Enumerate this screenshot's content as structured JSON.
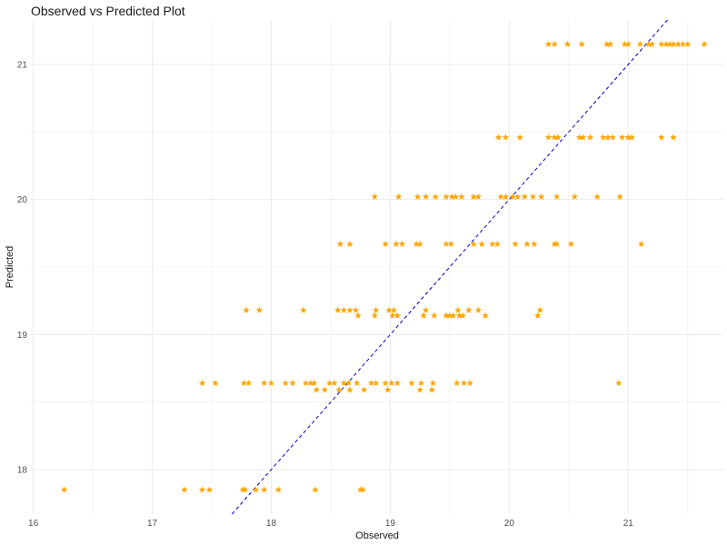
{
  "chart_data": {
    "type": "scatter",
    "title": "Observed vs Predicted Plot",
    "xlabel": "Observed",
    "ylabel": "Predicted",
    "xlim": [
      15.98,
      21.8
    ],
    "ylim": [
      17.67,
      21.33
    ],
    "x_ticks": [
      "16",
      "17",
      "18",
      "19",
      "20",
      "21"
    ],
    "y_ticks": [
      "18",
      "19",
      "20",
      "21"
    ],
    "grid": true,
    "point_color": "#FFA500",
    "point_shape": "star",
    "reference_line": {
      "type": "y=x",
      "color": "#0000CC",
      "style": "dashed"
    },
    "series": [
      {
        "points": [
          [
            16.26,
            17.85
          ],
          [
            17.27,
            17.85
          ],
          [
            17.42,
            17.85
          ],
          [
            17.48,
            17.85
          ],
          [
            17.76,
            17.85
          ],
          [
            17.78,
            17.85
          ],
          [
            17.87,
            17.85
          ],
          [
            17.94,
            17.85
          ],
          [
            18.06,
            17.85
          ],
          [
            18.37,
            17.85
          ],
          [
            18.75,
            17.85
          ],
          [
            18.77,
            17.85
          ],
          [
            17.42,
            18.64
          ],
          [
            17.53,
            18.64
          ],
          [
            17.77,
            18.64
          ],
          [
            17.81,
            18.64
          ],
          [
            17.94,
            18.64
          ],
          [
            18.0,
            18.64
          ],
          [
            18.12,
            18.64
          ],
          [
            18.18,
            18.64
          ],
          [
            18.29,
            18.64
          ],
          [
            18.33,
            18.64
          ],
          [
            18.36,
            18.64
          ],
          [
            18.49,
            18.64
          ],
          [
            18.53,
            18.64
          ],
          [
            18.61,
            18.64
          ],
          [
            18.65,
            18.64
          ],
          [
            18.72,
            18.64
          ],
          [
            18.84,
            18.64
          ],
          [
            18.88,
            18.64
          ],
          [
            18.96,
            18.64
          ],
          [
            19.01,
            18.64
          ],
          [
            19.06,
            18.64
          ],
          [
            19.18,
            18.64
          ],
          [
            19.26,
            18.64
          ],
          [
            19.36,
            18.64
          ],
          [
            19.56,
            18.64
          ],
          [
            19.62,
            18.64
          ],
          [
            19.67,
            18.64
          ],
          [
            20.92,
            18.64
          ],
          [
            18.38,
            18.59
          ],
          [
            18.45,
            18.59
          ],
          [
            18.57,
            18.59
          ],
          [
            18.66,
            18.59
          ],
          [
            18.78,
            18.59
          ],
          [
            18.98,
            18.59
          ],
          [
            19.25,
            18.59
          ],
          [
            19.35,
            18.59
          ],
          [
            17.79,
            19.18
          ],
          [
            17.9,
            19.18
          ],
          [
            18.27,
            19.18
          ],
          [
            18.56,
            19.18
          ],
          [
            18.61,
            19.18
          ],
          [
            18.66,
            19.18
          ],
          [
            18.71,
            19.18
          ],
          [
            18.88,
            19.18
          ],
          [
            18.99,
            19.18
          ],
          [
            19.03,
            19.18
          ],
          [
            19.3,
            19.18
          ],
          [
            19.57,
            19.18
          ],
          [
            19.66,
            19.18
          ],
          [
            19.74,
            19.18
          ],
          [
            20.26,
            19.18
          ],
          [
            18.73,
            19.14
          ],
          [
            18.87,
            19.14
          ],
          [
            19.02,
            19.14
          ],
          [
            19.06,
            19.14
          ],
          [
            19.28,
            19.14
          ],
          [
            19.37,
            19.14
          ],
          [
            19.47,
            19.14
          ],
          [
            19.5,
            19.14
          ],
          [
            19.53,
            19.14
          ],
          [
            19.58,
            19.14
          ],
          [
            19.61,
            19.14
          ],
          [
            19.8,
            19.14
          ],
          [
            20.24,
            19.14
          ],
          [
            18.58,
            19.67
          ],
          [
            18.66,
            19.67
          ],
          [
            18.96,
            19.67
          ],
          [
            19.05,
            19.67
          ],
          [
            19.1,
            19.67
          ],
          [
            19.22,
            19.67
          ],
          [
            19.25,
            19.67
          ],
          [
            19.47,
            19.67
          ],
          [
            19.51,
            19.67
          ],
          [
            19.7,
            19.67
          ],
          [
            19.77,
            19.67
          ],
          [
            19.86,
            19.67
          ],
          [
            19.9,
            19.67
          ],
          [
            20.05,
            19.67
          ],
          [
            20.15,
            19.67
          ],
          [
            20.21,
            19.67
          ],
          [
            20.38,
            19.67
          ],
          [
            20.4,
            19.67
          ],
          [
            20.52,
            19.67
          ],
          [
            21.11,
            19.67
          ],
          [
            18.87,
            20.02
          ],
          [
            19.07,
            20.02
          ],
          [
            19.23,
            20.02
          ],
          [
            19.3,
            20.02
          ],
          [
            19.38,
            20.02
          ],
          [
            19.47,
            20.02
          ],
          [
            19.52,
            20.02
          ],
          [
            19.55,
            20.02
          ],
          [
            19.6,
            20.02
          ],
          [
            19.7,
            20.02
          ],
          [
            19.74,
            20.02
          ],
          [
            19.93,
            20.02
          ],
          [
            19.97,
            20.02
          ],
          [
            20.03,
            20.02
          ],
          [
            20.07,
            20.02
          ],
          [
            20.13,
            20.02
          ],
          [
            20.2,
            20.02
          ],
          [
            20.27,
            20.02
          ],
          [
            20.4,
            20.02
          ],
          [
            20.55,
            20.02
          ],
          [
            20.74,
            20.02
          ],
          [
            20.93,
            20.02
          ],
          [
            19.91,
            20.46
          ],
          [
            19.97,
            20.46
          ],
          [
            20.09,
            20.46
          ],
          [
            20.33,
            20.46
          ],
          [
            20.38,
            20.46
          ],
          [
            20.41,
            20.46
          ],
          [
            20.59,
            20.46
          ],
          [
            20.62,
            20.46
          ],
          [
            20.68,
            20.46
          ],
          [
            20.79,
            20.46
          ],
          [
            20.83,
            20.46
          ],
          [
            20.87,
            20.46
          ],
          [
            20.95,
            20.46
          ],
          [
            21.0,
            20.46
          ],
          [
            21.03,
            20.46
          ],
          [
            21.28,
            20.46
          ],
          [
            21.38,
            20.46
          ],
          [
            20.33,
            21.15
          ],
          [
            20.38,
            21.15
          ],
          [
            20.49,
            21.15
          ],
          [
            20.61,
            21.15
          ],
          [
            20.82,
            21.15
          ],
          [
            20.85,
            21.15
          ],
          [
            20.97,
            21.15
          ],
          [
            21.0,
            21.15
          ],
          [
            21.1,
            21.15
          ],
          [
            21.17,
            21.15
          ],
          [
            21.2,
            21.15
          ],
          [
            21.28,
            21.15
          ],
          [
            21.32,
            21.15
          ],
          [
            21.35,
            21.15
          ],
          [
            21.38,
            21.15
          ],
          [
            21.42,
            21.15
          ],
          [
            21.46,
            21.15
          ],
          [
            21.5,
            21.15
          ],
          [
            21.64,
            21.15
          ]
        ]
      }
    ]
  }
}
